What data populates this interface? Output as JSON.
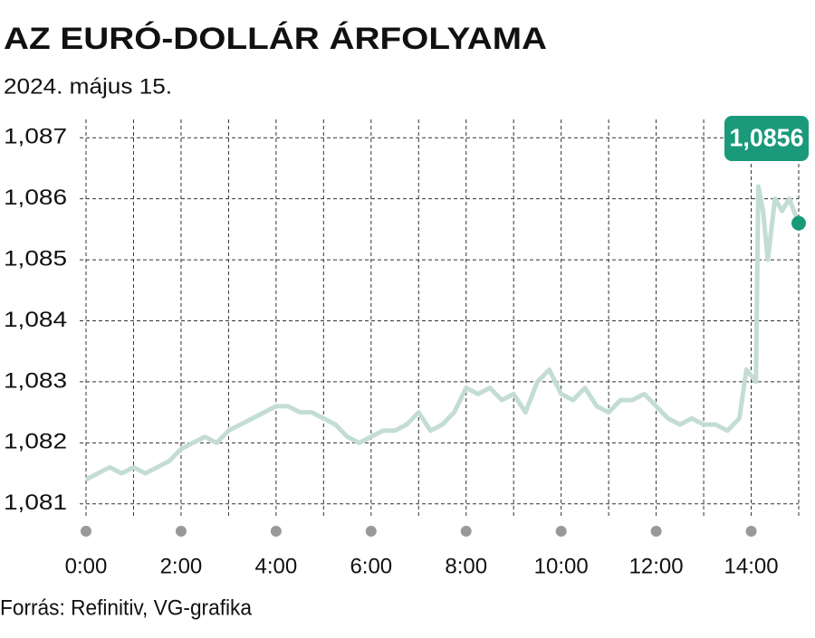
{
  "chart_data": {
    "type": "line",
    "title": "AZ EURÓ-DOLLÁR ÁRFOLYAMA",
    "subtitle": "2024. május 15.",
    "source": "Forrás: Refinitiv, VG-grafika",
    "x": [
      0,
      0.25,
      0.5,
      0.75,
      1,
      1.25,
      1.5,
      1.75,
      2,
      2.25,
      2.5,
      2.75,
      3,
      3.25,
      3.5,
      3.75,
      4,
      4.25,
      4.5,
      4.75,
      5,
      5.25,
      5.5,
      5.75,
      6,
      6.25,
      6.5,
      6.75,
      7,
      7.25,
      7.5,
      7.75,
      8,
      8.25,
      8.5,
      8.75,
      9,
      9.25,
      9.5,
      9.75,
      10,
      10.25,
      10.5,
      10.75,
      11,
      11.25,
      11.5,
      11.75,
      12,
      12.25,
      12.5,
      12.75,
      13,
      13.25,
      13.5,
      13.75,
      13.9,
      14,
      14.1,
      14.15,
      14.25,
      14.35,
      14.5,
      14.65,
      14.8,
      15
    ],
    "values": [
      1.0814,
      1.0815,
      1.0816,
      1.0815,
      1.0816,
      1.0815,
      1.0816,
      1.0817,
      1.0819,
      1.082,
      1.0821,
      1.082,
      1.0822,
      1.0823,
      1.0824,
      1.0825,
      1.0826,
      1.0826,
      1.0825,
      1.0825,
      1.0824,
      1.0823,
      1.0821,
      1.082,
      1.0821,
      1.0822,
      1.0822,
      1.0823,
      1.0825,
      1.0822,
      1.0823,
      1.0825,
      1.0829,
      1.0828,
      1.0829,
      1.0827,
      1.0828,
      1.0825,
      1.083,
      1.0832,
      1.0828,
      1.0827,
      1.0829,
      1.0826,
      1.0825,
      1.0827,
      1.0827,
      1.0828,
      1.0826,
      1.0824,
      1.0823,
      1.0824,
      1.0823,
      1.0823,
      1.0822,
      1.0824,
      1.0832,
      1.0831,
      1.083,
      1.0862,
      1.0858,
      1.085,
      1.086,
      1.0858,
      1.086,
      1.0856
    ],
    "value_labels": [
      null,
      null,
      null,
      null,
      null,
      null,
      null,
      null,
      null,
      null,
      null,
      null,
      null,
      null,
      null,
      null,
      null,
      null,
      null,
      null,
      null,
      null,
      null,
      null,
      null,
      null,
      null,
      null,
      null,
      null,
      null,
      null,
      null,
      null,
      null,
      null,
      null,
      null,
      null,
      null,
      null,
      null,
      null,
      null,
      null,
      null,
      null,
      null,
      null,
      null,
      null,
      null,
      null,
      null,
      null,
      null,
      null,
      null,
      null,
      null,
      null,
      null,
      null,
      null,
      null,
      "1,0856"
    ],
    "color": "#c4ddd4",
    "marker_color": "#1a9a7a",
    "xlim": [
      0,
      15
    ],
    "xticks": [
      {
        "value": 0,
        "label": "0:00"
      },
      {
        "value": 2,
        "label": "2:00"
      },
      {
        "value": 4,
        "label": "4:00"
      },
      {
        "value": 6,
        "label": "6:00"
      },
      {
        "value": 8,
        "label": "8:00"
      },
      {
        "value": 10,
        "label": "10:00"
      },
      {
        "value": 12,
        "label": "12:00"
      },
      {
        "value": 14,
        "label": "14:00"
      }
    ],
    "xgrid": [
      0,
      1,
      2,
      3,
      4,
      5,
      6,
      7,
      8,
      9,
      10,
      11,
      12,
      13,
      14,
      15
    ],
    "ylim": [
      1.0807,
      1.0873
    ],
    "yticks": [
      {
        "value": 1.081,
        "label": "1,081"
      },
      {
        "value": 1.082,
        "label": "1,082"
      },
      {
        "value": 1.083,
        "label": "1,083"
      },
      {
        "value": 1.084,
        "label": "1,084"
      },
      {
        "value": 1.085,
        "label": "1,085"
      },
      {
        "value": 1.086,
        "label": "1,086"
      },
      {
        "value": 1.087,
        "label": "1,087"
      }
    ],
    "grid": true
  }
}
